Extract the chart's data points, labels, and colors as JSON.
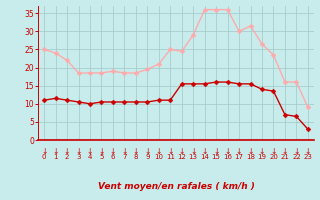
{
  "hours": [
    0,
    1,
    2,
    3,
    4,
    5,
    6,
    7,
    8,
    9,
    10,
    11,
    12,
    13,
    14,
    15,
    16,
    17,
    18,
    19,
    20,
    21,
    22,
    23
  ],
  "wind_avg": [
    11,
    11.5,
    11,
    10.5,
    10,
    10.5,
    10.5,
    10.5,
    10.5,
    10.5,
    11,
    11,
    15.5,
    15.5,
    15.5,
    16,
    16,
    15.5,
    15.5,
    14,
    13.5,
    7,
    6.5,
    3
  ],
  "wind_gust": [
    25,
    24,
    22,
    18.5,
    18.5,
    18.5,
    19,
    18.5,
    18.5,
    19.5,
    21,
    25,
    24.5,
    29,
    36,
    36,
    36,
    30,
    31.5,
    26.5,
    23.5,
    16,
    16,
    9
  ],
  "avg_color": "#cc0000",
  "gust_color": "#ffaaaa",
  "bg_color": "#c8ecec",
  "grid_color": "#a0c8c8",
  "axis_color": "#cc0000",
  "xlabel": "Vent moyen/en rafales ( km/h )",
  "ylim": [
    0,
    37
  ],
  "yticks": [
    0,
    5,
    10,
    15,
    20,
    25,
    30,
    35
  ],
  "xlim": [
    -0.5,
    23.5
  ],
  "markersize": 2.5,
  "linewidth": 1.0
}
